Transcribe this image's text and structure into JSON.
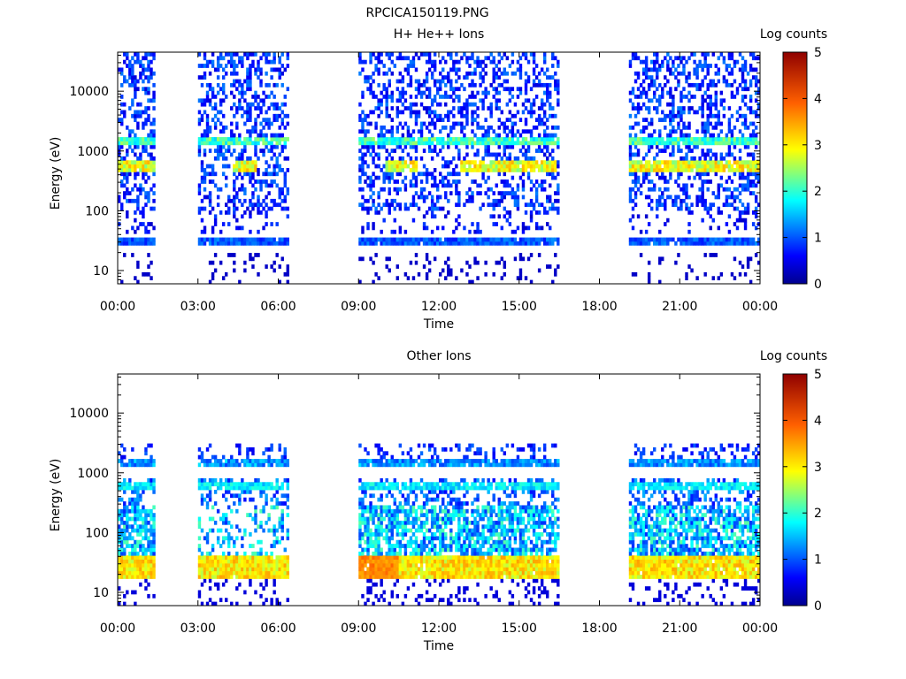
{
  "figure_title": "RPCICA150119.PNG",
  "chart_data": [
    {
      "type": "heatmap",
      "title": "H+ He++ Ions",
      "xlabel": "Time",
      "ylabel": "Energy (eV)",
      "x_ticks": [
        "00:00",
        "03:00",
        "06:00",
        "09:00",
        "12:00",
        "15:00",
        "18:00",
        "21:00",
        "00:00"
      ],
      "xlim_hours": [
        0,
        24
      ],
      "y_scale": "log",
      "ylim": [
        6,
        45000
      ],
      "y_ticks": [
        10,
        100,
        1000,
        10000
      ],
      "y_tick_labels": [
        "10",
        "100",
        "1000",
        "10000"
      ],
      "colorbar": {
        "label": "Log counts",
        "range": [
          0,
          5
        ],
        "ticks": [
          "0",
          "1",
          "2",
          "3",
          "4",
          "5"
        ]
      },
      "data_intervals_hours": [
        [
          0.0,
          1.4
        ],
        [
          3.05,
          6.35
        ],
        [
          9.05,
          16.45
        ],
        [
          19.05,
          23.95
        ]
      ],
      "features": [
        {
          "name": "band ~1500 eV",
          "energy_ev": 1500,
          "level": 2.0
        },
        {
          "name": "band ~500 eV",
          "energy_ev": 500,
          "level": 3.0
        },
        {
          "name": "band ~30 eV",
          "energy_ev": 30,
          "level": 1.0
        },
        {
          "name": "background",
          "level": 0.6
        }
      ]
    },
    {
      "type": "heatmap",
      "title": "Other Ions",
      "xlabel": "Time",
      "ylabel": "Energy (eV)",
      "x_ticks": [
        "00:00",
        "03:00",
        "06:00",
        "09:00",
        "12:00",
        "15:00",
        "18:00",
        "21:00",
        "00:00"
      ],
      "xlim_hours": [
        0,
        24
      ],
      "y_scale": "log",
      "ylim": [
        6,
        45000
      ],
      "y_ticks": [
        10,
        100,
        1000,
        10000
      ],
      "y_tick_labels": [
        "10",
        "100",
        "1000",
        "10000"
      ],
      "colorbar": {
        "label": "Log counts",
        "range": [
          0,
          5
        ],
        "ticks": [
          "0",
          "1",
          "2",
          "3",
          "4",
          "5"
        ]
      },
      "data_intervals_hours": [
        [
          0.0,
          1.4
        ],
        [
          3.05,
          6.35
        ],
        [
          9.05,
          16.45
        ],
        [
          19.05,
          23.95
        ]
      ],
      "features": [
        {
          "name": "band ~30 eV",
          "energy_ev": 30,
          "level": 3.2
        },
        {
          "name": "band ~1500 eV",
          "energy_ev": 1500,
          "level": 1.2
        },
        {
          "name": "band ~600 eV",
          "energy_ev": 600,
          "level": 1.5
        },
        {
          "name": "broad 50-300 eV",
          "energy_ev": 120,
          "level": 1.4
        }
      ]
    }
  ]
}
